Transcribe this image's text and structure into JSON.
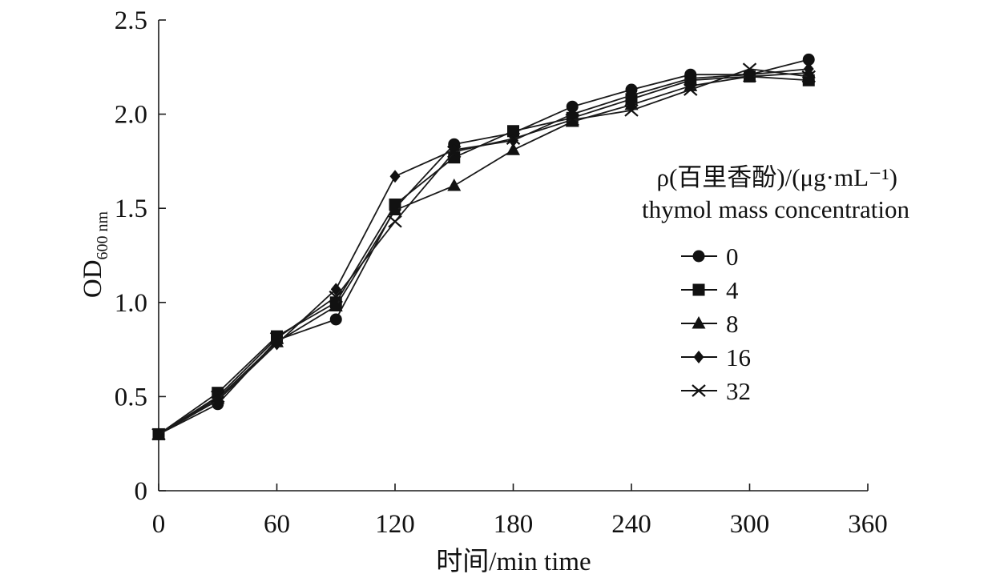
{
  "chart_data": {
    "type": "line",
    "x": [
      0,
      30,
      60,
      90,
      120,
      150,
      180,
      210,
      240,
      270,
      300,
      330
    ],
    "xlim": [
      0,
      360
    ],
    "ylim": [
      0,
      2.5
    ],
    "xticks": [
      "0",
      "60",
      "120",
      "180",
      "240",
      "300",
      "360"
    ],
    "yticks": [
      "0",
      "0.5",
      "1.0",
      "1.5",
      "2.0",
      "2.5"
    ],
    "xlabel": "时间/min time",
    "ylabel_main": "OD",
    "ylabel_sub": "600 nm",
    "legend_title_line1": "ρ(百里香酚)/(μg·mL⁻¹)",
    "legend_title_line2": "thymol mass concentration",
    "legend_position": "right",
    "grid": false,
    "series": [
      {
        "name": "0",
        "marker": "circle",
        "values": [
          0.3,
          0.46,
          0.8,
          0.91,
          1.5,
          1.84,
          1.9,
          2.04,
          2.13,
          2.21,
          2.21,
          2.29
        ]
      },
      {
        "name": "4",
        "marker": "square",
        "values": [
          0.3,
          0.52,
          0.82,
          1.0,
          1.52,
          1.77,
          1.91,
          1.98,
          2.08,
          2.18,
          2.2,
          2.18
        ]
      },
      {
        "name": "8",
        "marker": "triangle",
        "values": [
          0.3,
          0.49,
          0.79,
          0.98,
          1.49,
          1.62,
          1.81,
          1.96,
          2.05,
          2.15,
          2.2,
          2.22
        ]
      },
      {
        "name": "16",
        "marker": "diamond",
        "values": [
          0.3,
          0.48,
          0.78,
          1.07,
          1.67,
          1.81,
          1.86,
          2.0,
          2.1,
          2.19,
          2.21,
          2.24
        ]
      },
      {
        "name": "32",
        "marker": "x",
        "values": [
          0.3,
          0.5,
          0.81,
          1.03,
          1.43,
          1.8,
          1.87,
          1.97,
          2.02,
          2.13,
          2.24,
          2.2
        ]
      }
    ]
  }
}
